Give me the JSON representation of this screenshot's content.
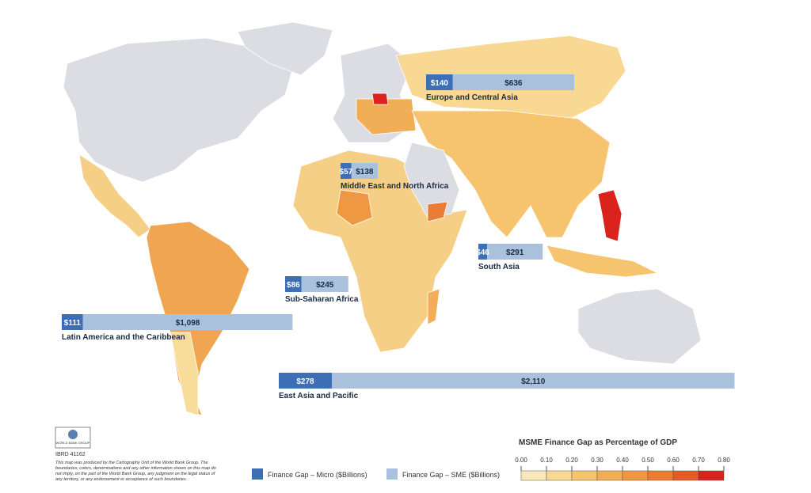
{
  "regions": [
    {
      "name": "Europe and Central Asia",
      "micro": 140,
      "micro_label": "$140",
      "sme": 636,
      "sme_label": "$636"
    },
    {
      "name": "Middle East and North Africa",
      "micro": 57,
      "micro_label": "$57",
      "sme": 138,
      "sme_label": "$138"
    },
    {
      "name": "South Asia",
      "micro": 46,
      "micro_label": "$46",
      "sme": 291,
      "sme_label": "$291"
    },
    {
      "name": "Sub-Saharan Africa",
      "micro": 86,
      "micro_label": "$86",
      "sme": 245,
      "sme_label": "$245"
    },
    {
      "name": "Latin America and the Caribbean",
      "micro": 111,
      "micro_label": "$111",
      "sme": 1098,
      "sme_label": "$1,098"
    },
    {
      "name": "East Asia and Pacific",
      "micro": 278,
      "micro_label": "$278",
      "sme": 2110,
      "sme_label": "$2,110"
    }
  ],
  "legend": {
    "micro": {
      "label": "Finance Gap – Micro ($Billions)",
      "color": "#3d6fb6"
    },
    "sme": {
      "label": "Finance Gap – SME ($Billions)",
      "color": "#a9c1dc"
    }
  },
  "color_scale": {
    "title": "MSME Finance Gap as Percentage of GDP",
    "ticks": [
      {
        "value": 0,
        "label": "0.00"
      },
      {
        "value": 0.1,
        "label": "0.10"
      },
      {
        "value": 0.2,
        "label": "0.20"
      },
      {
        "value": 0.3,
        "label": "0.30"
      },
      {
        "value": 0.4,
        "label": "0.40"
      },
      {
        "value": 0.5,
        "label": "0.50"
      },
      {
        "value": 0.6,
        "label": "0.60"
      },
      {
        "value": 0.7,
        "label": "0.70"
      },
      {
        "value": 0.8,
        "label": "0.80"
      }
    ],
    "colors": [
      "#fbe8b8",
      "#f9d894",
      "#f6c46f",
      "#f2ae57",
      "#ee9843",
      "#ea7d33",
      "#e55a26",
      "#d9231c"
    ]
  },
  "logo": "WORLD BANK GROUP",
  "map_id": "IBRD 41162",
  "disclaimer": "This map was produced by the Cartography Unit of the World Bank Group. The boundaries, colors, denominations and any other information shown on this map do not imply, on the part of the World Bank Group, any judgment on the legal status of any territory, or any endorsement or acceptance of such boundaries."
}
